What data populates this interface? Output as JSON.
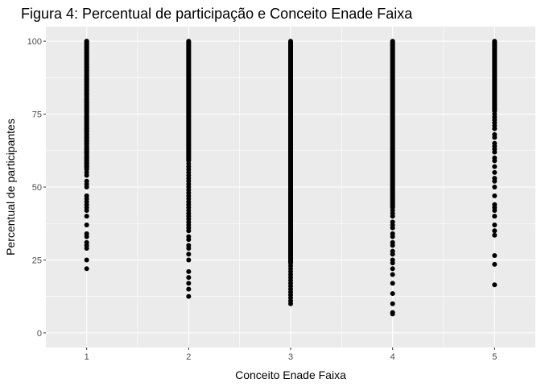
{
  "chart_data": {
    "type": "scatter",
    "title": "Figura 4: Percentual de participação e Conceito Enade Faixa",
    "xlabel": "Conceito Enade Faixa",
    "ylabel": "Percentual de participantes",
    "x_ticks": [
      "1",
      "2",
      "3",
      "4",
      "5"
    ],
    "y_ticks": [
      "0",
      "25",
      "50",
      "75",
      "100"
    ],
    "xlim": [
      0.6,
      5.4
    ],
    "ylim": [
      -5,
      105
    ],
    "grid": true,
    "colors": {
      "panel": "#ebebeb",
      "grid": "#ffffff",
      "point": "#000000"
    },
    "series": [
      {
        "x": 1,
        "dense_range": [
          56,
          100
        ],
        "values": [
          22,
          25,
          29,
          30,
          31,
          33,
          34,
          37,
          40,
          42,
          43,
          44,
          45,
          46,
          47,
          50,
          51,
          52,
          54,
          55,
          57,
          58,
          59,
          60,
          62,
          63,
          65,
          66,
          67,
          68,
          69,
          70,
          71,
          72,
          73,
          74,
          76,
          77,
          78,
          79,
          80,
          82,
          83,
          84,
          85,
          86,
          87,
          88,
          90,
          91,
          92,
          93,
          94,
          95,
          96,
          97,
          98,
          99,
          100
        ]
      },
      {
        "x": 2,
        "dense_range": [
          59,
          100
        ],
        "values": [
          12.5,
          15,
          17,
          19,
          21,
          25,
          27,
          29,
          30,
          32,
          33,
          35,
          36,
          37,
          38,
          39,
          40,
          41,
          42,
          43,
          44,
          45,
          46,
          47,
          48,
          49,
          50,
          51,
          52,
          53,
          54,
          55,
          56,
          57,
          58
        ]
      },
      {
        "x": 3,
        "dense_range": [
          24,
          100
        ],
        "values": [
          10,
          11,
          12,
          13,
          14,
          15,
          16,
          17,
          18,
          19,
          20,
          21,
          22,
          23
        ]
      },
      {
        "x": 4,
        "dense_range": [
          43,
          100
        ],
        "values": [
          6.5,
          7,
          10,
          13.5,
          17,
          20,
          22,
          24,
          25,
          27,
          28,
          30,
          31,
          33,
          34,
          36,
          37,
          38,
          40,
          41,
          42
        ]
      },
      {
        "x": 5,
        "dense_range": [
          76,
          100
        ],
        "values": [
          16.5,
          23.5,
          26.5,
          33.5,
          35,
          37,
          40,
          42,
          43,
          44,
          47,
          50,
          52,
          53,
          55,
          57,
          59,
          60,
          62,
          63,
          64,
          65,
          67,
          68,
          70,
          71,
          72,
          73,
          74,
          75
        ]
      }
    ]
  }
}
